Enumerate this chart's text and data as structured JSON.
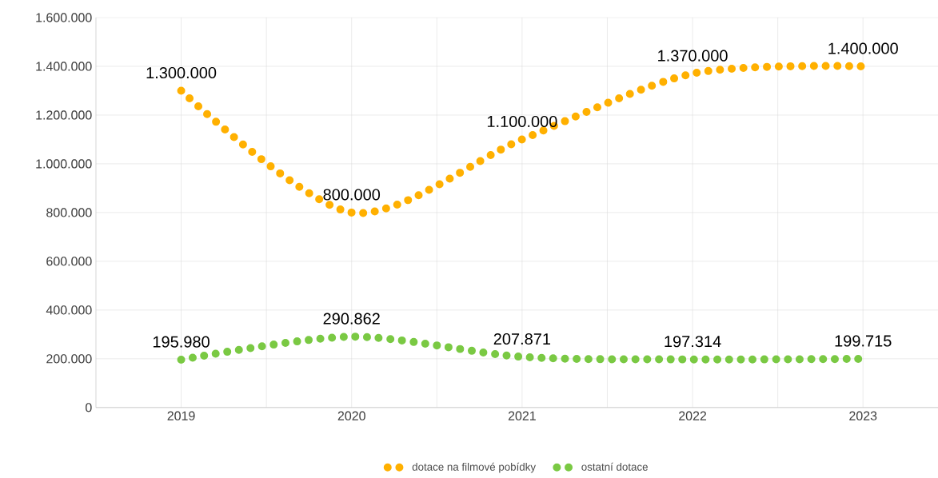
{
  "chart_data": {
    "type": "line",
    "x": [
      2019,
      2020,
      2021,
      2022,
      2023
    ],
    "series": [
      {
        "name": "dotace na filmové pobídky",
        "color": "#ffb000",
        "values": [
          1300000,
          800000,
          1100000,
          1370000,
          1400000
        ],
        "value_labels": [
          "1.300.000",
          "800.000",
          "1.100.000",
          "1.370.000",
          "1.400.000"
        ]
      },
      {
        "name": "ostatní dotace",
        "color": "#7ac943",
        "values": [
          195980,
          290862,
          207871,
          197314,
          199715
        ],
        "value_labels": [
          "195.980",
          "290.862",
          "207.871",
          "197.314",
          "199.715"
        ]
      }
    ],
    "xlim": [
      2018.5,
      2023.44
    ],
    "xticks": [
      2019,
      {
        "value": 2019.5,
        "label": null
      },
      2020,
      {
        "value": 2020.5,
        "label": null
      },
      2021,
      {
        "value": 2021.5,
        "label": null
      },
      2022,
      {
        "value": 2022.5,
        "label": null
      },
      2023
    ],
    "ylim": [
      0,
      1600000
    ],
    "yticks": [
      0,
      {
        "value": 200000,
        "label": "200.000"
      },
      {
        "value": 400000,
        "label": "400.000"
      },
      {
        "value": 600000,
        "label": "600.000"
      },
      {
        "value": 800000,
        "label": "800.000"
      },
      {
        "value": 1000000,
        "label": "1.000.000"
      },
      {
        "value": 1200000,
        "label": "1.200.000"
      },
      {
        "value": 1400000,
        "label": "1.400.000"
      },
      {
        "value": 1600000,
        "label": "1.600.000"
      }
    ],
    "grid": true,
    "legend": "bottom",
    "line_style": "dotted"
  }
}
